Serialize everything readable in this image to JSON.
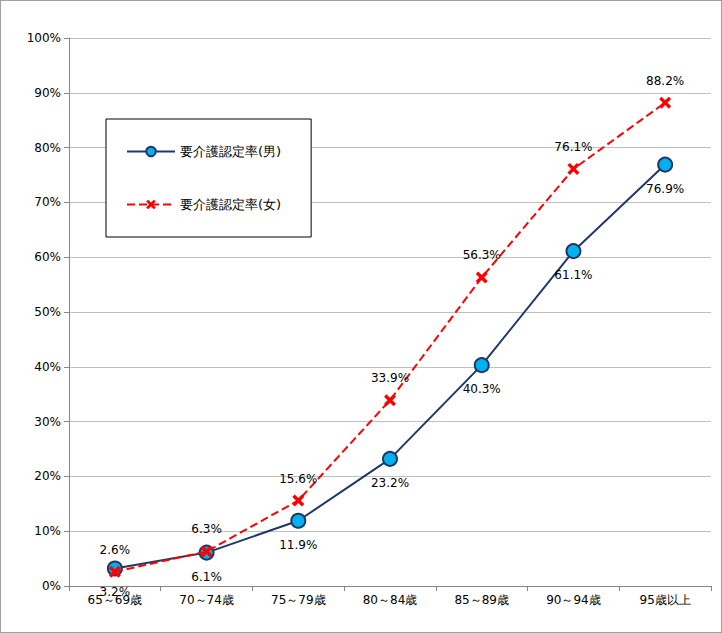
{
  "chart_data": {
    "type": "line",
    "categories": [
      "65～69歳",
      "70～74歳",
      "75～79歳",
      "80～84歳",
      "85～89歳",
      "90～94歳",
      "95歳以上"
    ],
    "series": [
      {
        "name": "要介護認定率(男)",
        "color": "#1f3864",
        "marker": "circle",
        "line_style": "solid",
        "values": [
          3.2,
          6.1,
          11.9,
          23.2,
          40.3,
          61.1,
          76.9
        ],
        "value_labels": [
          "3.2%",
          "6.1%",
          "11.9%",
          "23.2%",
          "40.3%",
          "61.1%",
          "76.9%"
        ]
      },
      {
        "name": "要介護認定率(女)",
        "color": "#ff0000",
        "marker": "x",
        "line_style": "dashed",
        "values": [
          2.6,
          6.3,
          15.6,
          33.9,
          56.3,
          76.1,
          88.2
        ],
        "value_labels": [
          "2.6%",
          "6.3%",
          "15.6%",
          "33.9%",
          "56.3%",
          "76.1%",
          "88.2%"
        ]
      }
    ],
    "ylim": [
      0,
      100
    ],
    "yticks": [
      {
        "value": 0,
        "label": "0%"
      },
      {
        "value": 10,
        "label": "10%"
      },
      {
        "value": 20,
        "label": "20%"
      },
      {
        "value": 30,
        "label": "30%"
      },
      {
        "value": 40,
        "label": "40%"
      },
      {
        "value": 50,
        "label": "50%"
      },
      {
        "value": 60,
        "label": "60%"
      },
      {
        "value": 70,
        "label": "70%"
      },
      {
        "value": 80,
        "label": "80%"
      },
      {
        "value": 90,
        "label": "90%"
      },
      {
        "value": 100,
        "label": "100%"
      }
    ],
    "grid": true,
    "legend": "upper left",
    "data_labels": true
  }
}
